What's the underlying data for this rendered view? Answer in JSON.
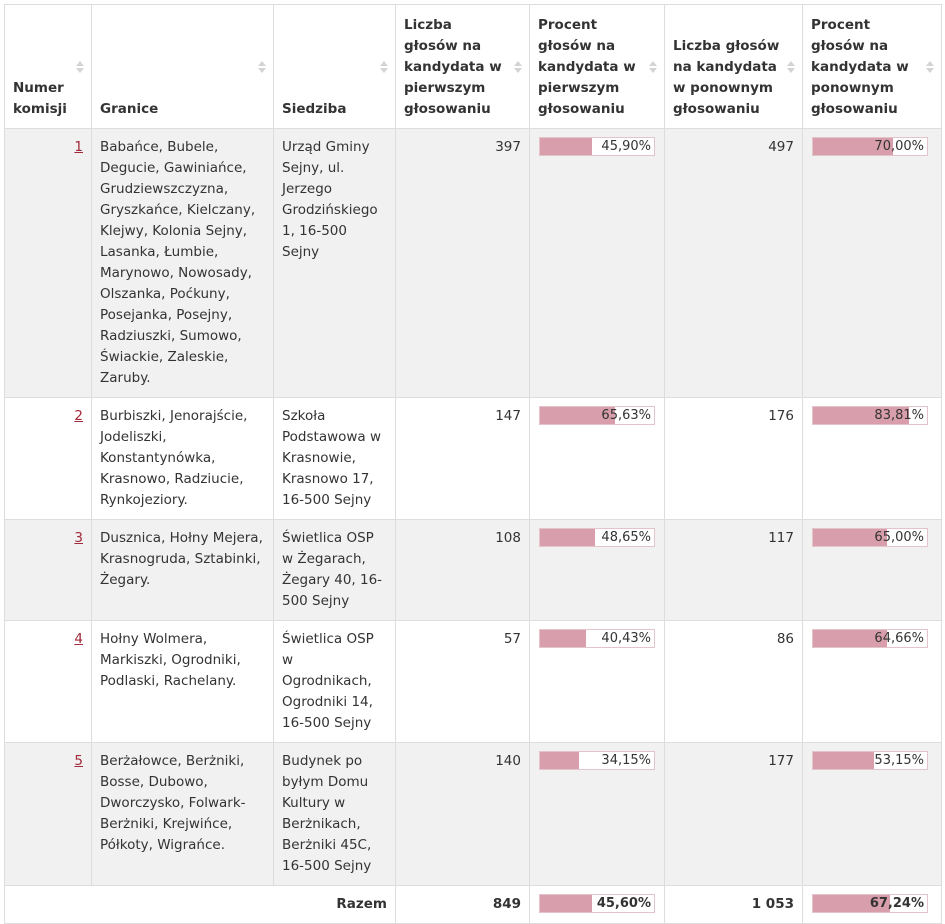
{
  "headers": {
    "numer": "Numer komisji",
    "granice": "Granice",
    "siedziba": "Siedziba",
    "glosy1": "Liczba głosów na kandydata w pierwszym głosowaniu",
    "procent1": "Procent głosów na kandydata w pierwszym głosowaniu",
    "glosy2": "Liczba głosów na kandydata w ponownym głosowaniu",
    "procent2": "Procent głosów na kandydata w ponownym głosowaniu"
  },
  "rows": [
    {
      "numer": "1",
      "granice": "Babańce, Bubele, Degucie, Gawiniańce, Grudziewszczyzna, Gryszkańce, Kielczany, Klejwy, Kolonia Sejny, Lasanka, Łumbie, Marynowo, Nowosady, Olszanka, Poćkuny, Posejanka, Posejny, Radziuszki, Sumowo, Świackie, Zaleskie, Zaruby.",
      "siedziba": "Urząd Gminy Sejny, ul. Jerzego Grodzińskiego 1, 16-500 Sejny",
      "glosy1": "397",
      "procent1": "45,90%",
      "procent1_value": 45.9,
      "glosy2": "497",
      "procent2": "70,00%",
      "procent2_value": 70.0
    },
    {
      "numer": "2",
      "granice": "Burbiszki, Jenorajście, Jodeliszki, Konstantynówka, Krasnowo, Radziucie, Rynkojeziory.",
      "siedziba": "Szkoła Podstawowa w Krasnowie, Krasnowo 17, 16-500 Sejny",
      "glosy1": "147",
      "procent1": "65,63%",
      "procent1_value": 65.63,
      "glosy2": "176",
      "procent2": "83,81%",
      "procent2_value": 83.81
    },
    {
      "numer": "3",
      "granice": "Dusznica, Hołny Mejera, Krasnogruda, Sztabinki, Żegary.",
      "siedziba": "Świetlica OSP w Żegarach, Żegary 40, 16-500 Sejny",
      "glosy1": "108",
      "procent1": "48,65%",
      "procent1_value": 48.65,
      "glosy2": "117",
      "procent2": "65,00%",
      "procent2_value": 65.0
    },
    {
      "numer": "4",
      "granice": "Hołny Wolmera, Markiszki, Ogrodniki, Podlaski, Rachelany.",
      "siedziba": "Świetlica OSP w Ogrodnikach, Ogrodniki 14, 16-500 Sejny",
      "glosy1": "57",
      "procent1": "40,43%",
      "procent1_value": 40.43,
      "glosy2": "86",
      "procent2": "64,66%",
      "procent2_value": 64.66
    },
    {
      "numer": "5",
      "granice": "Berżałowce, Berżniki, Bosse, Dubowo, Dworczysko, Folwark-Berżniki, Krejwińce, Półkoty, Wigrańce.",
      "siedziba": "Budynek po byłym Domu Kultury w Berżnikach, Berżniki 45C, 16-500 Sejny",
      "glosy1": "140",
      "procent1": "34,15%",
      "procent1_value": 34.15,
      "glosy2": "177",
      "procent2": "53,15%",
      "procent2_value": 53.15
    }
  ],
  "total": {
    "label": "Razem",
    "glosy1": "849",
    "procent1": "45,60%",
    "procent1_value": 45.6,
    "glosy2": "1 053",
    "procent2": "67,24%",
    "procent2_value": 67.24
  },
  "colors": {
    "bar_fill": "#d99eab",
    "link": "#a02a39",
    "odd_row": "#f1f1f1"
  }
}
